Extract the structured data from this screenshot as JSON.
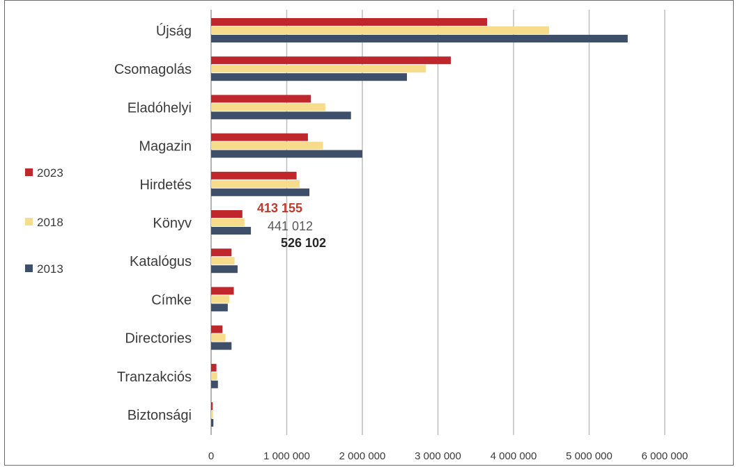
{
  "chart_data": {
    "type": "bar",
    "orientation": "horizontal",
    "categories": [
      "Újság",
      "Csomagolás",
      "Eladóhelyi",
      "Magazin",
      "Hirdetés",
      "Könyv",
      "Katalógus",
      "Címke",
      "Directories",
      "Tranzakciós",
      "Biztonsági"
    ],
    "series": [
      {
        "name": "2023",
        "color": "#c0272d",
        "values": [
          3650000,
          3170000,
          1320000,
          1280000,
          1130000,
          413155,
          270000,
          300000,
          150000,
          70000,
          20000
        ]
      },
      {
        "name": "2018",
        "color": "#f7dc8c",
        "values": [
          4470000,
          2840000,
          1510000,
          1480000,
          1170000,
          441012,
          310000,
          240000,
          190000,
          80000,
          25000
        ]
      },
      {
        "name": "2013",
        "color": "#3e5069",
        "values": [
          5510000,
          2590000,
          1850000,
          2000000,
          1300000,
          526102,
          350000,
          220000,
          270000,
          90000,
          30000
        ]
      }
    ],
    "data_labels": [
      {
        "category": "Könyv",
        "series": "2023",
        "text": "413 155",
        "color": "#c0392b"
      },
      {
        "category": "Könyv",
        "series": "2018",
        "text": "441 012",
        "color": "#595959"
      },
      {
        "category": "Könyv",
        "series": "2013",
        "text": "526 102",
        "color": "#262626"
      }
    ],
    "xlim": [
      0,
      6500000
    ],
    "xticks": [
      0,
      1000000,
      2000000,
      3000000,
      4000000,
      5000000,
      6000000
    ],
    "xtick_labels": [
      "0",
      "1 000 000",
      "2 000 000",
      "3 000 000",
      "4 000 000",
      "5 000 000",
      "6 000 000"
    ],
    "grid": "vertical",
    "legend_position": "left",
    "title": "",
    "xlabel": "",
    "ylabel": ""
  }
}
